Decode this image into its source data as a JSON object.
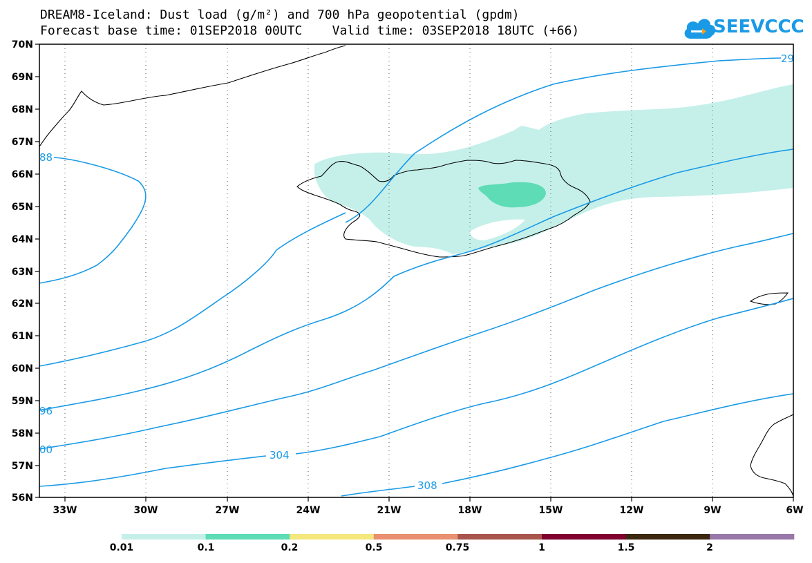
{
  "header": {
    "title_line1": "DREAM8-Iceland: Dust load (g/m²) and 700 hPa geopotential (gpdm)",
    "title_line2": "Forecast base time: 01SEP2018 00UTC    Valid time: 03SEP2018 18UTC (+66)"
  },
  "logo": {
    "text": "SEEVCCC",
    "color": "#1a9ae6",
    "icon": "cloud-logo-icon"
  },
  "map": {
    "lat_labels": [
      "70N",
      "69N",
      "68N",
      "67N",
      "66N",
      "65N",
      "64N",
      "63N",
      "62N",
      "61N",
      "60N",
      "59N",
      "58N",
      "57N",
      "56N"
    ],
    "lon_labels": [
      "33W",
      "30W",
      "27W",
      "24W",
      "21W",
      "18W",
      "15W",
      "12W",
      "9W",
      "6W"
    ],
    "contour_color": "#1a9ae6",
    "contour_labels": [
      "29",
      "88",
      "96",
      "00",
      "304",
      "308"
    ]
  },
  "colorbar": {
    "labels": [
      "0.01",
      "0.1",
      "0.2",
      "0.5",
      "0.75",
      "1",
      "1.5",
      "2"
    ],
    "colors": [
      "#c5f0ea",
      "#5ddcb6",
      "#f4e77c",
      "#e89070",
      "#a8564c",
      "#800030",
      "#3c2810",
      "#9878a8"
    ]
  }
}
